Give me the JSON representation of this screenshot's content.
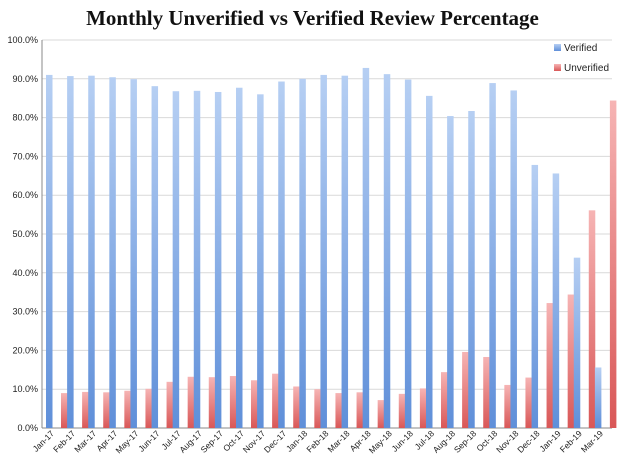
{
  "chart_data": {
    "type": "bar",
    "title": "Monthly Unverified vs Verified Review Percentage",
    "xlabel": "",
    "ylabel": "",
    "ylim": [
      0,
      100
    ],
    "yticks": [
      "0.0%",
      "10.0%",
      "20.0%",
      "30.0%",
      "40.0%",
      "50.0%",
      "60.0%",
      "70.0%",
      "80.0%",
      "90.0%",
      "100.0%"
    ],
    "grid": true,
    "legend_position": "top-right",
    "categories": [
      "Jan-17",
      "Feb-17",
      "Mar-17",
      "Apr-17",
      "May-17",
      "Jun-17",
      "Jul-17",
      "Aug-17",
      "Sep-17",
      "Oct-17",
      "Nov-17",
      "Dec-17",
      "Jan-18",
      "Feb-18",
      "Mar-18",
      "Apr-18",
      "May-18",
      "Jun-18",
      "Jul-18",
      "Aug-18",
      "Sep-18",
      "Oct-18",
      "Nov-18",
      "Dec-18",
      "Jan-19",
      "Feb-19",
      "Mar-19"
    ],
    "series": [
      {
        "name": "Verified",
        "color": "#7fa8e6",
        "values": [
          91.0,
          90.7,
          90.8,
          90.4,
          89.9,
          88.1,
          86.8,
          86.9,
          86.6,
          87.7,
          86.0,
          89.3,
          90.0,
          91.0,
          90.8,
          92.8,
          91.2,
          89.8,
          85.6,
          80.4,
          81.7,
          88.9,
          87.0,
          67.8,
          65.6,
          43.9,
          15.6
        ]
      },
      {
        "name": "Unverified",
        "color": "#e88a8a",
        "values": [
          9.0,
          9.3,
          9.2,
          9.6,
          10.1,
          11.9,
          13.2,
          13.1,
          13.4,
          12.3,
          14.0,
          10.7,
          10.0,
          9.0,
          9.2,
          7.2,
          8.8,
          10.2,
          14.4,
          19.6,
          18.3,
          11.1,
          13.0,
          32.2,
          34.4,
          56.1,
          84.4
        ]
      }
    ]
  }
}
